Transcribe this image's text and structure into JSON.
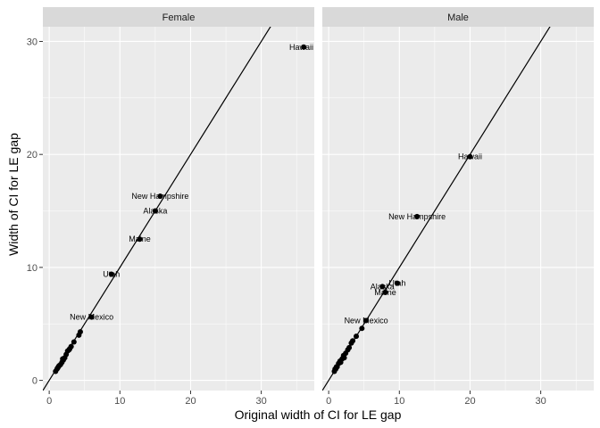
{
  "chart_data": {
    "type": "scatter",
    "xlabel": "Original width of CI for LE gap",
    "ylabel": "Width of CI for LE gap",
    "xlim": [
      -0.9,
      37.5
    ],
    "ylim": [
      -0.9,
      31.3
    ],
    "x_ticks": [
      0,
      10,
      20,
      30
    ],
    "y_ticks": [
      0,
      10,
      20,
      30
    ],
    "reference_line": {
      "slope": 1,
      "intercept": 0
    },
    "grid": true,
    "colors": {
      "panel": "#ebebeb",
      "strip": "#d9d9d9",
      "points": "#000000"
    },
    "panels": [
      {
        "name": "Female",
        "labeled_points": [
          {
            "label": "Hawaii",
            "x": 36.0,
            "y": 29.5
          },
          {
            "label": "New Hampshire",
            "x": 15.7,
            "y": 16.3
          },
          {
            "label": "Alaska",
            "x": 15.0,
            "y": 15.0
          },
          {
            "label": "Maine",
            "x": 12.8,
            "y": 12.5
          },
          {
            "label": "Utah",
            "x": 8.8,
            "y": 9.4
          },
          {
            "label": "New Mexico",
            "x": 6.0,
            "y": 5.6
          }
        ],
        "points": [
          {
            "x": 4.4,
            "y": 4.3
          },
          {
            "x": 4.2,
            "y": 4.0
          },
          {
            "x": 3.5,
            "y": 3.4
          },
          {
            "x": 3.1,
            "y": 3.0
          },
          {
            "x": 2.8,
            "y": 2.7
          },
          {
            "x": 2.6,
            "y": 2.6
          },
          {
            "x": 2.2,
            "y": 2.0
          },
          {
            "x": 2.0,
            "y": 1.8
          },
          {
            "x": 1.8,
            "y": 1.6
          },
          {
            "x": 1.6,
            "y": 1.4
          },
          {
            "x": 1.4,
            "y": 1.3
          },
          {
            "x": 1.2,
            "y": 1.1
          },
          {
            "x": 1.1,
            "y": 1.0
          },
          {
            "x": 0.9,
            "y": 0.8
          },
          {
            "x": 2.9,
            "y": 2.8
          },
          {
            "x": 2.4,
            "y": 2.3
          },
          {
            "x": 1.9,
            "y": 1.9
          },
          {
            "x": 1.3,
            "y": 1.2
          }
        ]
      },
      {
        "name": "Male",
        "labeled_points": [
          {
            "label": "Hawaii",
            "x": 20.0,
            "y": 19.8
          },
          {
            "label": "New Hampshire",
            "x": 12.5,
            "y": 14.5
          },
          {
            "label": "Utah",
            "x": 9.7,
            "y": 8.6
          },
          {
            "label": "Alaska",
            "x": 7.6,
            "y": 8.3
          },
          {
            "label": "Maine",
            "x": 8.0,
            "y": 7.8
          },
          {
            "label": "New Mexico",
            "x": 5.3,
            "y": 5.3
          }
        ],
        "points": [
          {
            "x": 4.7,
            "y": 4.6
          },
          {
            "x": 3.9,
            "y": 3.9
          },
          {
            "x": 3.2,
            "y": 3.3
          },
          {
            "x": 2.9,
            "y": 2.9
          },
          {
            "x": 2.7,
            "y": 2.7
          },
          {
            "x": 2.4,
            "y": 2.4
          },
          {
            "x": 2.1,
            "y": 2.2
          },
          {
            "x": 1.9,
            "y": 1.9
          },
          {
            "x": 1.6,
            "y": 1.7
          },
          {
            "x": 1.4,
            "y": 1.5
          },
          {
            "x": 1.2,
            "y": 1.2
          },
          {
            "x": 1.0,
            "y": 1.0
          },
          {
            "x": 0.8,
            "y": 0.8
          },
          {
            "x": 3.4,
            "y": 3.5
          },
          {
            "x": 2.2,
            "y": 2.0
          },
          {
            "x": 1.7,
            "y": 1.6
          },
          {
            "x": 1.1,
            "y": 1.2
          },
          {
            "x": 0.9,
            "y": 1.0
          }
        ]
      }
    ]
  }
}
